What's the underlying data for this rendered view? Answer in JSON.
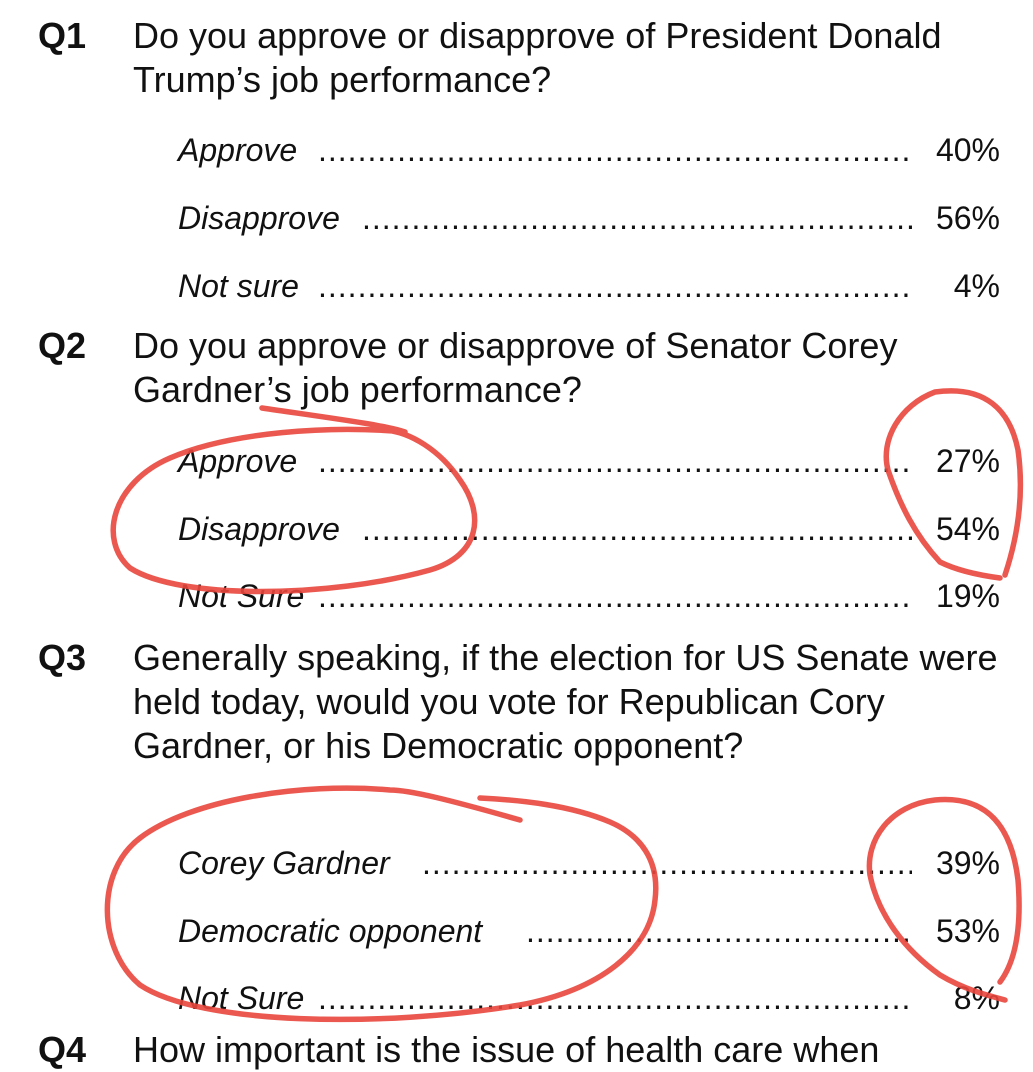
{
  "questions": [
    {
      "number": "Q1",
      "text": "Do you approve or disapprove of President Donald Trump’s job performance?",
      "answers": [
        {
          "label": "Approve",
          "value": "40%"
        },
        {
          "label": "Disapprove",
          "value": "56%"
        },
        {
          "label": "Not sure",
          "value": "4%"
        }
      ]
    },
    {
      "number": "Q2",
      "text": "Do you approve or disapprove of Senator Corey Gardner’s job performance?",
      "answers": [
        {
          "label": "Approve",
          "value": "27%"
        },
        {
          "label": "Disapprove",
          "value": "54%"
        },
        {
          "label": "Not Sure",
          "value": "19%"
        }
      ]
    },
    {
      "number": "Q3",
      "text": "Generally speaking, if the election for US Senate were held today, would you vote for Republican Cory Gardner, or his Democratic opponent?",
      "answers": [
        {
          "label": "Corey Gardner",
          "value": "39%"
        },
        {
          "label": "Democratic opponent",
          "value": "53%"
        },
        {
          "label": "Not Sure",
          "value": "8%"
        }
      ]
    },
    {
      "number": "Q4",
      "text": "How important is the issue of health care when"
    }
  ],
  "annotation_color": "#e8463c"
}
